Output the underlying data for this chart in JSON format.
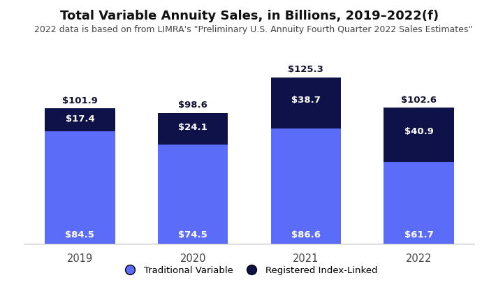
{
  "title": "Total Variable Annuity Sales, in Billions, 2019–2022(f)",
  "subtitle": "2022 data is based on from LIMRA's \"Preliminary U.S. Annuity Fourth Quarter 2022 Sales Estimates\"",
  "years": [
    "2019",
    "2020",
    "2021",
    "2022"
  ],
  "traditional": [
    84.5,
    74.5,
    86.6,
    61.7
  ],
  "registered": [
    17.4,
    24.1,
    38.7,
    40.9
  ],
  "totals": [
    101.9,
    98.6,
    125.3,
    102.6
  ],
  "traditional_color": "#5b6cf9",
  "registered_color": "#0f1248",
  "background_color": "#ffffff",
  "bar_width": 0.62,
  "ylim": [
    0,
    148
  ],
  "legend_labels": [
    "Traditional Variable",
    "Registered Index-Linked"
  ],
  "title_fontsize": 13,
  "subtitle_fontsize": 9,
  "label_fontsize": 9.5,
  "total_fontsize": 9.5
}
